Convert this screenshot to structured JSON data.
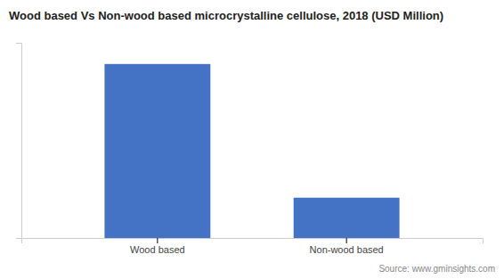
{
  "chart_data": {
    "type": "bar",
    "title": "Wood based Vs Non-wood based microcrystalline cellulose, 2018 (USD Million)",
    "categories": [
      "Wood based",
      "Non-wood based"
    ],
    "values": [
      820,
      190
    ],
    "color": "#4472C4",
    "ylim": [
      0,
      920
    ],
    "grid": false,
    "tick_labels": "x",
    "annotations": [
      "Source: www.gminsights.com"
    ]
  }
}
